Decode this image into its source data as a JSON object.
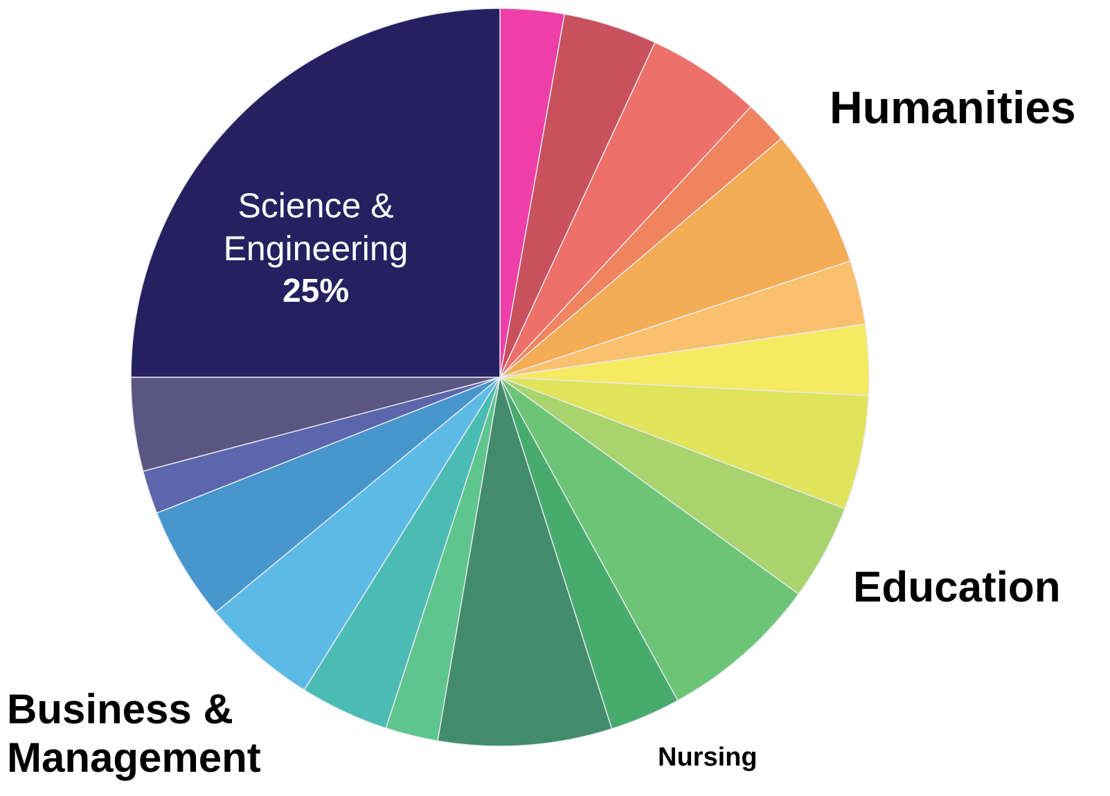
{
  "chart_data": {
    "type": "pie",
    "categories": [
      null,
      null,
      null,
      null,
      null,
      null,
      null,
      null,
      null,
      null,
      null,
      null,
      null,
      null,
      null,
      null,
      null,
      null,
      "Science & Engineering"
    ],
    "values": [
      2.8,
      4.1,
      5.0,
      1.9,
      6.1,
      2.8,
      3.1,
      5.0,
      4.2,
      7.0,
      3.1,
      7.6,
      2.3,
      3.9,
      5.1,
      5.0,
      1.9,
      4.1,
      25
    ],
    "value_labels": [
      null,
      null,
      null,
      null,
      null,
      null,
      null,
      null,
      null,
      null,
      null,
      null,
      null,
      null,
      null,
      null,
      null,
      null,
      "25%"
    ],
    "colors": [
      "#ee3fa8",
      "#c9515e",
      "#ef6f69",
      "#f0845e",
      "#f4ac55",
      "#f9c06e",
      "#f6ea62",
      "#dfe45a",
      "#a9d36d",
      "#6cc577",
      "#46ab6d",
      "#428b6b",
      "#5ec58f",
      "#4bbcb3",
      "#5bbbe6",
      "#4796cd",
      "#5b66ac",
      "#5b5581",
      "#262060"
    ],
    "annotations": [
      "Humanities",
      "Education",
      "Business & Management",
      "Nursing"
    ]
  }
}
